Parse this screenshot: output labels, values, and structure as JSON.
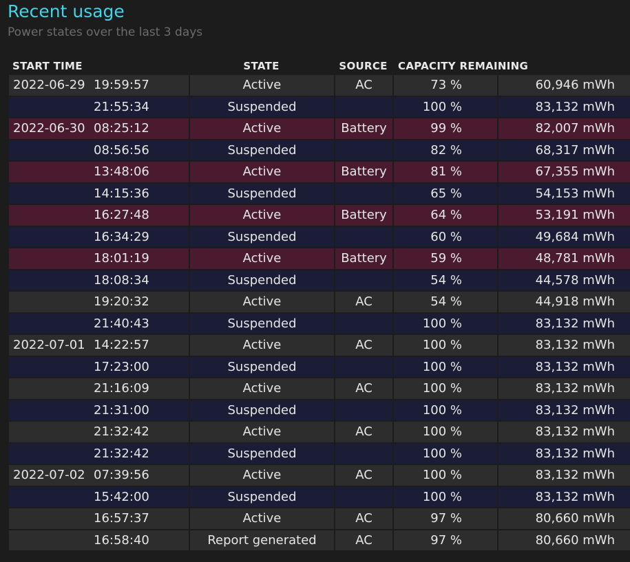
{
  "header": {
    "title": "Recent usage",
    "subtitle": "Power states over the last 3 days"
  },
  "columns": {
    "start_time": "START TIME",
    "state": "STATE",
    "source": "SOURCE",
    "capacity": "CAPACITY REMAINING"
  },
  "colors": {
    "title": "#3fd4e8",
    "row_ac": "#2d2d2d",
    "row_suspended": "#1b1c36",
    "row_battery": "#4a1a2e"
  },
  "rows": [
    {
      "date": "2022-06-29",
      "time": "19:59:57",
      "state": "Active",
      "source": "AC",
      "percent": "73 %",
      "capacity": "60,946 mWh",
      "kind": "ac"
    },
    {
      "date": "",
      "time": "21:55:34",
      "state": "Suspended",
      "source": "",
      "percent": "100 %",
      "capacity": "83,132 mWh",
      "kind": "susp"
    },
    {
      "date": "2022-06-30",
      "time": "08:25:12",
      "state": "Active",
      "source": "Battery",
      "percent": "99 %",
      "capacity": "82,007 mWh",
      "kind": "batt"
    },
    {
      "date": "",
      "time": "08:56:56",
      "state": "Suspended",
      "source": "",
      "percent": "82 %",
      "capacity": "68,317 mWh",
      "kind": "susp"
    },
    {
      "date": "",
      "time": "13:48:06",
      "state": "Active",
      "source": "Battery",
      "percent": "81 %",
      "capacity": "67,355 mWh",
      "kind": "batt"
    },
    {
      "date": "",
      "time": "14:15:36",
      "state": "Suspended",
      "source": "",
      "percent": "65 %",
      "capacity": "54,153 mWh",
      "kind": "susp"
    },
    {
      "date": "",
      "time": "16:27:48",
      "state": "Active",
      "source": "Battery",
      "percent": "64 %",
      "capacity": "53,191 mWh",
      "kind": "batt"
    },
    {
      "date": "",
      "time": "16:34:29",
      "state": "Suspended",
      "source": "",
      "percent": "60 %",
      "capacity": "49,684 mWh",
      "kind": "susp"
    },
    {
      "date": "",
      "time": "18:01:19",
      "state": "Active",
      "source": "Battery",
      "percent": "59 %",
      "capacity": "48,781 mWh",
      "kind": "batt"
    },
    {
      "date": "",
      "time": "18:08:34",
      "state": "Suspended",
      "source": "",
      "percent": "54 %",
      "capacity": "44,578 mWh",
      "kind": "susp"
    },
    {
      "date": "",
      "time": "19:20:32",
      "state": "Active",
      "source": "AC",
      "percent": "54 %",
      "capacity": "44,918 mWh",
      "kind": "ac"
    },
    {
      "date": "",
      "time": "21:40:43",
      "state": "Suspended",
      "source": "",
      "percent": "100 %",
      "capacity": "83,132 mWh",
      "kind": "susp"
    },
    {
      "date": "2022-07-01",
      "time": "14:22:57",
      "state": "Active",
      "source": "AC",
      "percent": "100 %",
      "capacity": "83,132 mWh",
      "kind": "ac"
    },
    {
      "date": "",
      "time": "17:23:00",
      "state": "Suspended",
      "source": "",
      "percent": "100 %",
      "capacity": "83,132 mWh",
      "kind": "susp"
    },
    {
      "date": "",
      "time": "21:16:09",
      "state": "Active",
      "source": "AC",
      "percent": "100 %",
      "capacity": "83,132 mWh",
      "kind": "ac"
    },
    {
      "date": "",
      "time": "21:31:00",
      "state": "Suspended",
      "source": "",
      "percent": "100 %",
      "capacity": "83,132 mWh",
      "kind": "susp"
    },
    {
      "date": "",
      "time": "21:32:42",
      "state": "Active",
      "source": "AC",
      "percent": "100 %",
      "capacity": "83,132 mWh",
      "kind": "ac"
    },
    {
      "date": "",
      "time": "21:32:42",
      "state": "Suspended",
      "source": "",
      "percent": "100 %",
      "capacity": "83,132 mWh",
      "kind": "susp"
    },
    {
      "date": "2022-07-02",
      "time": "07:39:56",
      "state": "Active",
      "source": "AC",
      "percent": "100 %",
      "capacity": "83,132 mWh",
      "kind": "ac"
    },
    {
      "date": "",
      "time": "15:42:00",
      "state": "Suspended",
      "source": "",
      "percent": "100 %",
      "capacity": "83,132 mWh",
      "kind": "susp"
    },
    {
      "date": "",
      "time": "16:57:37",
      "state": "Active",
      "source": "AC",
      "percent": "97 %",
      "capacity": "80,660 mWh",
      "kind": "ac"
    },
    {
      "date": "",
      "time": "16:58:40",
      "state": "Report generated",
      "source": "AC",
      "percent": "97 %",
      "capacity": "80,660 mWh",
      "kind": "ac"
    }
  ]
}
